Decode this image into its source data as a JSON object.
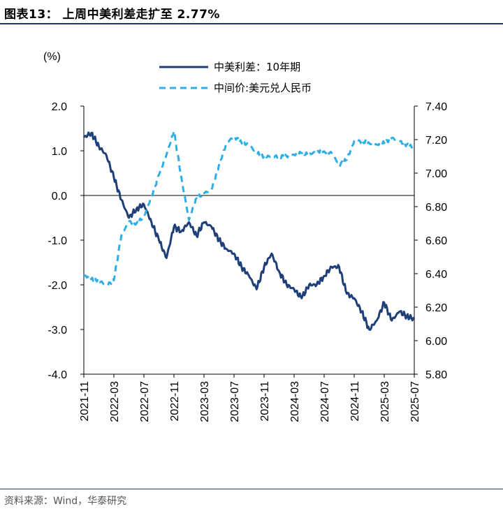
{
  "header": {
    "title": "图表13：  上周中美利差走扩至 2.77%"
  },
  "footer": {
    "source": "资料来源：Wind，华泰研究"
  },
  "chart_data": {
    "type": "line",
    "y_unit_label": "(%)",
    "legend": {
      "spread": "中美利差：10年期",
      "fx": "中间价:美元兑人民币"
    },
    "colors": {
      "spread": "#1f3f7a",
      "fx": "#2eaee6"
    },
    "x_tick_labels": [
      "2021-11",
      "2022-03",
      "2022-07",
      "2022-11",
      "2023-03",
      "2023-07",
      "2023-11",
      "2024-03",
      "2024-07",
      "2024-11",
      "2025-03",
      "2025-07"
    ],
    "x_range": [
      "2021-11",
      "2025-07"
    ],
    "y_left": {
      "range": [
        -4.0,
        2.0
      ],
      "ticks": [
        "2.0",
        "1.0",
        "0.0",
        "-1.0",
        "-2.0",
        "-3.0",
        "-4.0"
      ],
      "tick_values": [
        2,
        1,
        0,
        -1,
        -2,
        -3,
        -4
      ]
    },
    "y_right": {
      "range": [
        5.8,
        7.4
      ],
      "ticks": [
        "7.40",
        "7.20",
        "7.00",
        "6.80",
        "6.60",
        "6.40",
        "6.20",
        "6.00",
        "5.80"
      ],
      "tick_values": [
        7.4,
        7.2,
        7.0,
        6.8,
        6.6,
        6.4,
        6.2,
        6.0,
        5.8
      ]
    },
    "series": [
      {
        "name": "中美利差：10年期",
        "axis": "left",
        "style": "solid",
        "x": [
          "2021-11",
          "2021-12",
          "2022-01",
          "2022-02",
          "2022-03",
          "2022-04",
          "2022-05",
          "2022-06",
          "2022-07",
          "2022-08",
          "2022-09",
          "2022-10",
          "2022-11",
          "2022-12",
          "2023-01",
          "2023-02",
          "2023-03",
          "2023-04",
          "2023-05",
          "2023-06",
          "2023-07",
          "2023-08",
          "2023-09",
          "2023-10",
          "2023-11",
          "2023-12",
          "2024-01",
          "2024-02",
          "2024-03",
          "2024-04",
          "2024-05",
          "2024-06",
          "2024-07",
          "2024-08",
          "2024-09",
          "2024-10",
          "2024-11",
          "2024-12",
          "2025-01",
          "2025-02",
          "2025-03",
          "2025-04",
          "2025-05",
          "2025-06",
          "2025-07"
        ],
        "values": [
          1.3,
          1.4,
          1.1,
          0.9,
          0.4,
          -0.1,
          -0.5,
          -0.3,
          -0.2,
          -0.6,
          -1.0,
          -1.4,
          -0.7,
          -0.8,
          -0.6,
          -0.9,
          -0.6,
          -0.7,
          -1.0,
          -1.2,
          -1.3,
          -1.6,
          -1.8,
          -2.1,
          -1.6,
          -1.3,
          -1.7,
          -2.0,
          -2.1,
          -2.3,
          -2.0,
          -2.0,
          -1.8,
          -1.6,
          -1.6,
          -2.2,
          -2.3,
          -2.6,
          -3.0,
          -2.8,
          -2.4,
          -2.8,
          -2.6,
          -2.7,
          -2.77
        ]
      },
      {
        "name": "中间价:美元兑人民币",
        "axis": "right",
        "style": "dashed",
        "x": [
          "2021-11",
          "2021-12",
          "2022-01",
          "2022-02",
          "2022-03",
          "2022-04",
          "2022-05",
          "2022-06",
          "2022-07",
          "2022-08",
          "2022-09",
          "2022-10",
          "2022-11",
          "2022-12",
          "2023-01",
          "2023-02",
          "2023-03",
          "2023-04",
          "2023-05",
          "2023-06",
          "2023-07",
          "2023-08",
          "2023-09",
          "2023-10",
          "2023-11",
          "2023-12",
          "2024-01",
          "2024-02",
          "2024-03",
          "2024-04",
          "2024-05",
          "2024-06",
          "2024-07",
          "2024-08",
          "2024-09",
          "2024-10",
          "2024-11",
          "2024-12",
          "2025-01",
          "2025-02",
          "2025-03",
          "2025-04",
          "2025-05",
          "2025-06",
          "2025-07"
        ],
        "values": [
          6.39,
          6.37,
          6.36,
          6.33,
          6.36,
          6.63,
          6.71,
          6.7,
          6.74,
          6.86,
          6.99,
          7.11,
          7.25,
          6.97,
          6.72,
          6.85,
          6.88,
          6.9,
          7.05,
          7.18,
          7.22,
          7.18,
          7.17,
          7.12,
          7.1,
          7.1,
          7.1,
          7.1,
          7.11,
          7.12,
          7.11,
          7.13,
          7.13,
          7.12,
          7.05,
          7.08,
          7.19,
          7.19,
          7.18,
          7.17,
          7.18,
          7.21,
          7.19,
          7.17,
          7.15
        ]
      }
    ]
  }
}
